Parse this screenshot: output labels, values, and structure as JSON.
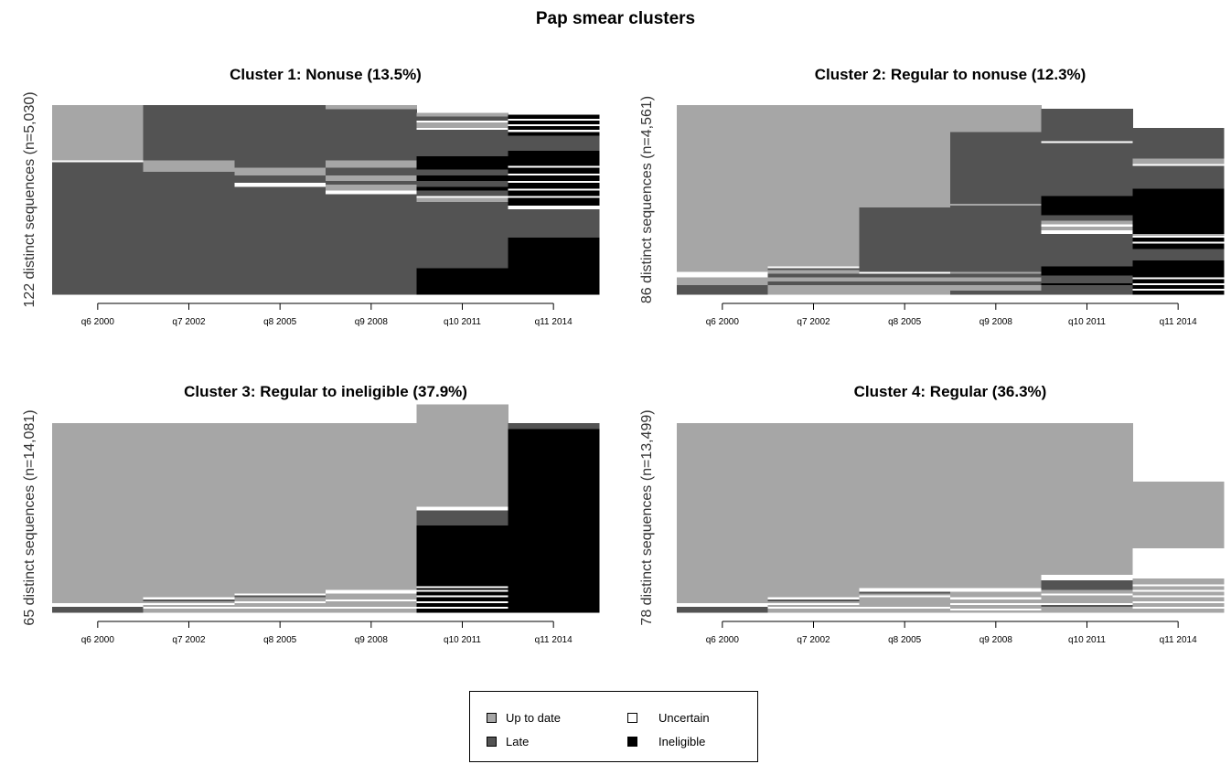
{
  "title": "Pap smear clusters",
  "colors": {
    "Up to date": "#a6a6a6",
    "Late": "#535353",
    "Uncertain": "#ffffff",
    "Ineligible": "#000000"
  },
  "legend": [
    {
      "label": "Up to date",
      "state": "Up to date"
    },
    {
      "label": "Uncertain",
      "state": "Uncertain"
    },
    {
      "label": "Late",
      "state": "Late"
    },
    {
      "label": "Ineligible",
      "state": "Ineligible"
    }
  ],
  "chart_data": [
    {
      "type": "area",
      "title": "Cluster 1: Nonuse (13.5%)",
      "ylabel": "122 distinct sequences (n=5,030)",
      "categories": [
        "q6 2000",
        "q7 2002",
        "q8 2005",
        "q9 2008",
        "q10 2011",
        "q11 2014"
      ],
      "columns": [
        [
          [
            "Late",
            0.7
          ],
          [
            "Uncertain",
            0.01
          ],
          [
            "Up to date",
            0.29
          ]
        ],
        [
          [
            "Late",
            0.65
          ],
          [
            "Up to date",
            0.06
          ],
          [
            "Late",
            0.29
          ]
        ],
        [
          [
            "Late",
            0.57
          ],
          [
            "Uncertain",
            0.02
          ],
          [
            "Late",
            0.04
          ],
          [
            "Up to date",
            0.04
          ],
          [
            "Late",
            0.33
          ]
        ],
        [
          [
            "Late",
            0.53
          ],
          [
            "Uncertain",
            0.02
          ],
          [
            "Up to date",
            0.03
          ],
          [
            "Late",
            0.02
          ],
          [
            "Up to date",
            0.03
          ],
          [
            "Late",
            0.04
          ],
          [
            "Up to date",
            0.04
          ],
          [
            "Late",
            0.27
          ],
          [
            "Up to date",
            0.02
          ]
        ],
        [
          [
            "Ineligible",
            0.14
          ],
          [
            "Late",
            0.35
          ],
          [
            "Up to date",
            0.02
          ],
          [
            "Uncertain",
            0.01
          ],
          [
            "Late",
            0.03
          ],
          [
            "Ineligible",
            0.02
          ],
          [
            "Late",
            0.03
          ],
          [
            "Ineligible",
            0.03
          ],
          [
            "Late",
            0.03
          ],
          [
            "Ineligible",
            0.07
          ],
          [
            "Late",
            0.14
          ],
          [
            "Uncertain",
            0.01
          ],
          [
            "Up to date",
            0.03
          ],
          [
            "Uncertain",
            0.01
          ],
          [
            "Late",
            0.02
          ],
          [
            "Up to date",
            0.02
          ]
        ],
        [
          [
            "Ineligible",
            0.3
          ],
          [
            "Late",
            0.15
          ],
          [
            "Uncertain",
            0.02
          ],
          [
            "Ineligible",
            0.04
          ],
          [
            "Uncertain",
            0.01
          ],
          [
            "Ineligible",
            0.03
          ],
          [
            "Uncertain",
            0.01
          ],
          [
            "Ineligible",
            0.03
          ],
          [
            "Uncertain",
            0.01
          ],
          [
            "Ineligible",
            0.03
          ],
          [
            "Uncertain",
            0.01
          ],
          [
            "Ineligible",
            0.03
          ],
          [
            "Uncertain",
            0.01
          ],
          [
            "Ineligible",
            0.08
          ],
          [
            "Late",
            0.08
          ],
          [
            "Ineligible",
            0.02
          ],
          [
            "Uncertain",
            0.01
          ],
          [
            "Ineligible",
            0.02
          ],
          [
            "Uncertain",
            0.01
          ],
          [
            "Ineligible",
            0.02
          ],
          [
            "Uncertain",
            0.01
          ],
          [
            "Ineligible",
            0.02
          ]
        ]
      ]
    },
    {
      "type": "area",
      "title": "Cluster 2: Regular to nonuse (12.3%)",
      "ylabel": "86 distinct sequences (n=4,561)",
      "categories": [
        "q6 2000",
        "q7 2002",
        "q8 2005",
        "q9 2008",
        "q10 2011",
        "q11 2014"
      ],
      "columns": [
        [
          [
            "Late",
            0.05
          ],
          [
            "Up to date",
            0.04
          ],
          [
            "Uncertain",
            0.03
          ],
          [
            "Up to date",
            0.88
          ]
        ],
        [
          [
            "Up to date",
            0.05
          ],
          [
            "Late",
            0.02
          ],
          [
            "Up to date",
            0.02
          ],
          [
            "Late",
            0.02
          ],
          [
            "Up to date",
            0.02
          ],
          [
            "Late",
            0.01
          ],
          [
            "Uncertain",
            0.01
          ],
          [
            "Up to date",
            0.85
          ]
        ],
        [
          [
            "Up to date",
            0.05
          ],
          [
            "Late",
            0.02
          ],
          [
            "Up to date",
            0.02
          ],
          [
            "Late",
            0.02
          ],
          [
            "Uncertain",
            0.01
          ],
          [
            "Late",
            0.34
          ],
          [
            "Up to date",
            0.54
          ]
        ],
        [
          [
            "Late",
            0.02
          ],
          [
            "Up to date",
            0.03
          ],
          [
            "Late",
            0.02
          ],
          [
            "Up to date",
            0.02
          ],
          [
            "Late",
            0.02
          ],
          [
            "Up to date",
            0.01
          ],
          [
            "Late",
            0.35
          ],
          [
            "Up to date",
            0.01
          ],
          [
            "Late",
            0.38
          ],
          [
            "Up to date",
            0.14
          ]
        ],
        [
          [
            "Late",
            0.05
          ],
          [
            "Ineligible",
            0.01
          ],
          [
            "Late",
            0.04
          ],
          [
            "Ineligible",
            0.05
          ],
          [
            "Late",
            0.17
          ],
          [
            "Uncertain",
            0.02
          ],
          [
            "Up to date",
            0.02
          ],
          [
            "Uncertain",
            0.01
          ],
          [
            "Up to date",
            0.02
          ],
          [
            "Late",
            0.03
          ],
          [
            "Ineligible",
            0.1
          ],
          [
            "Late",
            0.28
          ],
          [
            "Uncertain",
            0.01
          ],
          [
            "Late",
            0.17
          ]
        ],
        [
          [
            "Ineligible",
            0.02
          ],
          [
            "Uncertain",
            0.01
          ],
          [
            "Ineligible",
            0.02
          ],
          [
            "Uncertain",
            0.01
          ],
          [
            "Ineligible",
            0.02
          ],
          [
            "Uncertain",
            0.01
          ],
          [
            "Ineligible",
            0.09
          ],
          [
            "Late",
            0.06
          ],
          [
            "Ineligible",
            0.03
          ],
          [
            "Uncertain",
            0.01
          ],
          [
            "Ineligible",
            0.02
          ],
          [
            "Uncertain",
            0.01
          ],
          [
            "Up to date",
            0.01
          ],
          [
            "Ineligible",
            0.24
          ],
          [
            "Late",
            0.12
          ],
          [
            "Uncertain",
            0.01
          ],
          [
            "Up to date",
            0.03
          ],
          [
            "Late",
            0.16
          ]
        ]
      ]
    },
    {
      "type": "area",
      "title": "Cluster 3: Regular to ineligible (37.9%)",
      "ylabel": "65 distinct sequences (n=14,081)",
      "categories": [
        "q6 2000",
        "q7 2002",
        "q8 2005",
        "q9 2008",
        "q10 2011",
        "q11 2014"
      ],
      "columns": [
        [
          [
            "Late",
            0.03
          ],
          [
            "Uncertain",
            0.02
          ],
          [
            "Up to date",
            0.95
          ]
        ],
        [
          [
            "Up to date",
            0.02
          ],
          [
            "Uncertain",
            0.01
          ],
          [
            "Up to date",
            0.01
          ],
          [
            "Uncertain",
            0.01
          ],
          [
            "Up to date",
            0.01
          ],
          [
            "Late",
            0.01
          ],
          [
            "Uncertain",
            0.01
          ],
          [
            "Up to date",
            0.92
          ]
        ],
        [
          [
            "Up to date",
            0.02
          ],
          [
            "Uncertain",
            0.01
          ],
          [
            "Up to date",
            0.02
          ],
          [
            "Uncertain",
            0.01
          ],
          [
            "Up to date",
            0.02
          ],
          [
            "Late",
            0.01
          ],
          [
            "Uncertain",
            0.01
          ],
          [
            "Up to date",
            0.9
          ]
        ],
        [
          [
            "Up to date",
            0.02
          ],
          [
            "Uncertain",
            0.01
          ],
          [
            "Up to date",
            0.03
          ],
          [
            "Uncertain",
            0.01
          ],
          [
            "Up to date",
            0.03
          ],
          [
            "Uncertain",
            0.02
          ],
          [
            "Up to date",
            0.88
          ]
        ],
        [
          [
            "Ineligible",
            0.02
          ],
          [
            "Uncertain",
            0.01
          ],
          [
            "Ineligible",
            0.02
          ],
          [
            "Uncertain",
            0.01
          ],
          [
            "Ineligible",
            0.02
          ],
          [
            "Uncertain",
            0.01
          ],
          [
            "Ineligible",
            0.02
          ],
          [
            "Uncertain",
            0.01
          ],
          [
            "Ineligible",
            0.01
          ],
          [
            "Uncertain",
            0.01
          ],
          [
            "Ineligible",
            0.32
          ],
          [
            "Late",
            0.08
          ],
          [
            "Uncertain",
            0.02
          ],
          [
            "Up to date",
            0.54
          ]
        ],
        [
          [
            "Ineligible",
            0.97
          ],
          [
            "Late",
            0.03
          ]
        ]
      ]
    },
    {
      "type": "area",
      "title": "Cluster 4: Regular (36.3%)",
      "ylabel": "78 distinct sequences (n=13,499)",
      "categories": [
        "q6 2000",
        "q7 2002",
        "q8 2005",
        "q9 2008",
        "q10 2011",
        "q11 2014"
      ],
      "columns": [
        [
          [
            "Late",
            0.03
          ],
          [
            "Uncertain",
            0.02
          ],
          [
            "Up to date",
            0.95
          ]
        ],
        [
          [
            "Up to date",
            0.02
          ],
          [
            "Uncertain",
            0.01
          ],
          [
            "Up to date",
            0.01
          ],
          [
            "Uncertain",
            0.01
          ],
          [
            "Up to date",
            0.01
          ],
          [
            "Late",
            0.01
          ],
          [
            "Uncertain",
            0.01
          ],
          [
            "Up to date",
            0.92
          ]
        ],
        [
          [
            "Up to date",
            0.02
          ],
          [
            "Uncertain",
            0.01
          ],
          [
            "Up to date",
            0.05
          ],
          [
            "Uncertain",
            0.01
          ],
          [
            "Up to date",
            0.01
          ],
          [
            "Late",
            0.01
          ],
          [
            "Uncertain",
            0.02
          ],
          [
            "Up to date",
            0.87
          ]
        ],
        [
          [
            "Up to date",
            0.01
          ],
          [
            "Uncertain",
            0.01
          ],
          [
            "Up to date",
            0.02
          ],
          [
            "Uncertain",
            0.01
          ],
          [
            "Up to date",
            0.02
          ],
          [
            "Uncertain",
            0.01
          ],
          [
            "Up to date",
            0.03
          ],
          [
            "Uncertain",
            0.02
          ],
          [
            "Up to date",
            0.87
          ]
        ],
        [
          [
            "Up to date",
            0.03
          ],
          [
            "Late",
            0.01
          ],
          [
            "Uncertain",
            0.01
          ],
          [
            "Up to date",
            0.04
          ],
          [
            "Uncertain",
            0.01
          ],
          [
            "Up to date",
            0.02
          ],
          [
            "Late",
            0.05
          ],
          [
            "Uncertain",
            0.03
          ],
          [
            "Up to date",
            0.8
          ]
        ],
        [
          [
            "Up to date",
            0.02
          ],
          [
            "Uncertain",
            0.01
          ],
          [
            "Up to date",
            0.02
          ],
          [
            "Uncertain",
            0.01
          ],
          [
            "Up to date",
            0.02
          ],
          [
            "Uncertain",
            0.01
          ],
          [
            "Up to date",
            0.02
          ],
          [
            "Uncertain",
            0.01
          ],
          [
            "Up to date",
            0.02
          ],
          [
            "Uncertain",
            0.01
          ],
          [
            "Up to date",
            0.03
          ],
          [
            "Uncertain",
            0.16
          ],
          [
            "Up to date",
            0.35
          ]
        ]
      ]
    }
  ]
}
